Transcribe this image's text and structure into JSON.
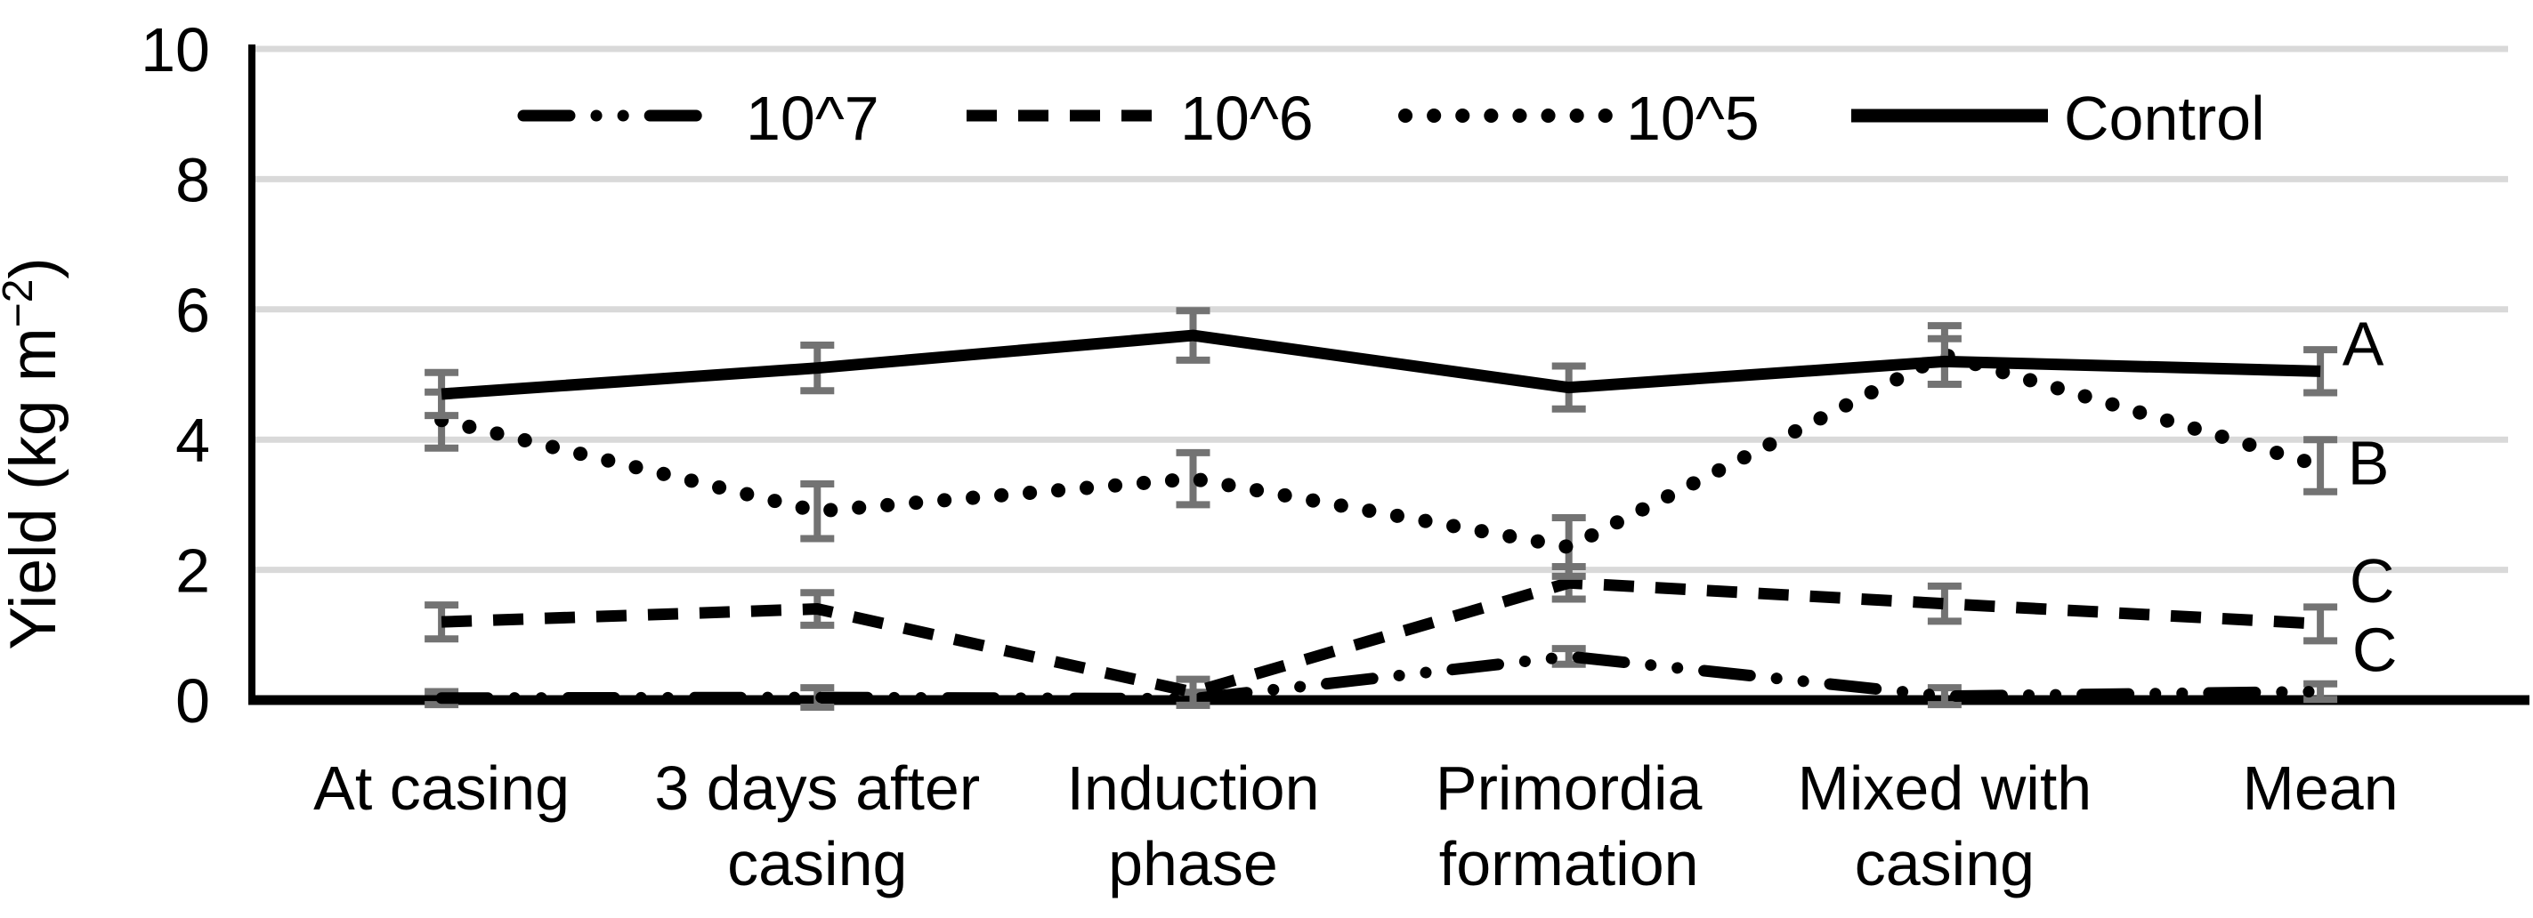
{
  "page": {
    "background": "#ffffff"
  },
  "chart_data": {
    "type": "line",
    "title": "",
    "xlabel": "",
    "ylabel": "Yield (kg m⁻²)",
    "ylabel_parts": {
      "prefix": "Yield (kg m",
      "superscript": "−2",
      "suffix": ")"
    },
    "ylim": [
      0,
      10
    ],
    "yticks": [
      0,
      2,
      4,
      6,
      8,
      10
    ],
    "grid": "horizontal",
    "gridline_color": "#d9d9d9",
    "error_bar_color": "#737373",
    "line_color": "#000000",
    "legend_position": "top-inside",
    "categories": [
      "At casing",
      "3 days after casing",
      "Induction phase",
      "Primordia formation",
      "Mixed with casing",
      "Mean"
    ],
    "category_label_lines": [
      [
        "At casing"
      ],
      [
        "3 days after",
        "casing"
      ],
      [
        "Induction",
        "phase"
      ],
      [
        "Primordia",
        "formation"
      ],
      [
        "Mixed with",
        "casing"
      ],
      [
        "Mean"
      ]
    ],
    "series": [
      {
        "name": "10^7",
        "line_style": "dash-dot-dot",
        "values": [
          0.03,
          0.04,
          0.02,
          0.67,
          0.06,
          0.13
        ],
        "errors": [
          0.1,
          0.15,
          0.1,
          0.12,
          0.13,
          0.12
        ]
      },
      {
        "name": "10^6",
        "line_style": "dashed",
        "values": [
          1.2,
          1.4,
          0.12,
          1.8,
          1.48,
          1.17
        ],
        "errors": [
          0.26,
          0.25,
          0.2,
          0.25,
          0.27,
          0.26
        ]
      },
      {
        "name": "10^5",
        "line_style": "dotted",
        "values": [
          4.3,
          2.9,
          3.4,
          2.35,
          5.3,
          3.6
        ],
        "errors": [
          0.43,
          0.42,
          0.4,
          0.45,
          0.45,
          0.4
        ]
      },
      {
        "name": "Control",
        "line_style": "solid",
        "values": [
          4.7,
          5.1,
          5.6,
          4.8,
          5.2,
          5.05
        ],
        "errors": [
          0.33,
          0.35,
          0.38,
          0.33,
          0.35,
          0.33
        ]
      }
    ],
    "legend_order": [
      "10^7",
      "10^6",
      "10^5",
      "Control"
    ],
    "annotations": [
      {
        "label": "A",
        "series": "Control",
        "value": 5.5
      },
      {
        "label": "B",
        "series": "10^5",
        "value": 3.67
      },
      {
        "label": "C",
        "series": "10^6",
        "value": 1.86
      },
      {
        "label": "C",
        "series": "10^7",
        "value": 0.8
      }
    ]
  }
}
